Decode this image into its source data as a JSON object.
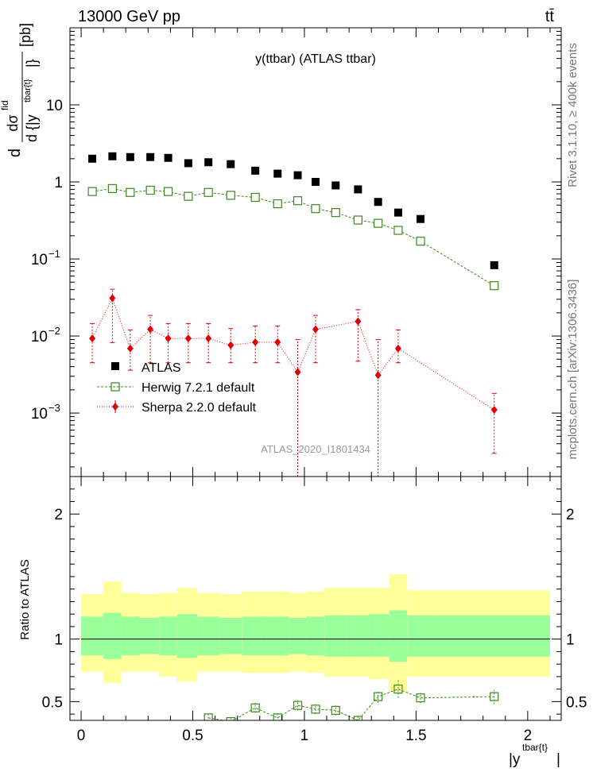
{
  "header": {
    "energy_label": "13000 GeV pp",
    "process_label": "tt̄"
  },
  "side_labels": {
    "rivet": "Rivet 3.1.10, ≥ 400k events",
    "source": "mcplots.cern.ch [arXiv:1306.3436]"
  },
  "chart_data": [
    {
      "type": "scatter",
      "panel": "main",
      "title": "y(ttbar) (ATLAS ttbar)",
      "watermark": "ATLAS_2020_I1801434",
      "ylabel": {
        "prefix": "d",
        "numerator": "dσ",
        "numerator_sup": "fid",
        "denominator": "d {|y",
        "denominator_sup": "tbar{t}",
        "denominator_close": "|}",
        "units": "[pb]"
      },
      "yscale": "log",
      "xlim": [
        -0.05,
        2.15
      ],
      "ylim": [
        0.00015,
        100
      ],
      "y_ticks": [
        {
          "value": 10,
          "label": "10"
        },
        {
          "value": 1,
          "label": "1"
        },
        {
          "value": 0.1,
          "label": "10",
          "exp": "−1"
        },
        {
          "value": 0.01,
          "label": "10",
          "exp": "−2"
        },
        {
          "value": 0.001,
          "label": "10",
          "exp": "−3"
        }
      ],
      "legend": [
        {
          "name": "ATLAS",
          "color": "#000000",
          "marker": "square-filled"
        },
        {
          "name": "Herwig 7.2.1 default",
          "color": "#3a8a1a",
          "marker": "square-open"
        },
        {
          "name": "Sherpa 2.2.0 default",
          "color": "#e00000",
          "marker": "diamond"
        }
      ],
      "series": [
        {
          "name": "ATLAS",
          "x": [
            0.05,
            0.14,
            0.22,
            0.31,
            0.39,
            0.48,
            0.57,
            0.67,
            0.78,
            0.88,
            0.97,
            1.05,
            1.14,
            1.24,
            1.33,
            1.42,
            1.52,
            1.85
          ],
          "values": [
            2.0,
            2.15,
            2.1,
            2.1,
            2.05,
            1.75,
            1.8,
            1.7,
            1.4,
            1.28,
            1.22,
            1.0,
            0.9,
            0.8,
            0.55,
            0.4,
            0.33,
            0.083
          ]
        },
        {
          "name": "Herwig 7.2.1 default",
          "x": [
            0.05,
            0.14,
            0.22,
            0.31,
            0.39,
            0.48,
            0.57,
            0.67,
            0.78,
            0.88,
            0.97,
            1.05,
            1.14,
            1.24,
            1.33,
            1.42,
            1.52,
            1.85
          ],
          "values": [
            0.75,
            0.82,
            0.73,
            0.78,
            0.75,
            0.65,
            0.73,
            0.67,
            0.63,
            0.52,
            0.57,
            0.45,
            0.4,
            0.32,
            0.29,
            0.235,
            0.17,
            0.045
          ]
        },
        {
          "name": "Sherpa 2.2.0 default",
          "x": [
            0.05,
            0.14,
            0.22,
            0.31,
            0.39,
            0.48,
            0.57,
            0.67,
            0.78,
            0.88,
            0.97,
            1.05,
            1.24,
            1.33,
            1.42,
            1.85
          ],
          "values": [
            0.0093,
            0.031,
            0.0069,
            0.0122,
            0.0093,
            0.0093,
            0.0093,
            0.0076,
            0.0083,
            0.0083,
            0.0034,
            0.0122,
            0.0155,
            0.0031,
            0.0069,
            0.0011
          ],
          "err_low": [
            0.0045,
            0.0082,
            0.0036,
            0.0045,
            0.0045,
            0.0045,
            0.0045,
            0.0045,
            0.0045,
            0.0045,
            0.00015,
            0.0045,
            0.0047,
            0.00015,
            0.0045,
            0.0003
          ],
          "err_high": [
            0.0145,
            0.0405,
            0.012,
            0.0185,
            0.0145,
            0.0145,
            0.0145,
            0.0125,
            0.0135,
            0.0135,
            0.009,
            0.0185,
            0.022,
            0.009,
            0.012,
            0.0018
          ]
        }
      ]
    },
    {
      "type": "scatter",
      "panel": "ratio",
      "ylabel": "Ratio to ATLAS",
      "xlabel": {
        "base": "|y",
        "sup": "tbar{t}",
        "close": "|"
      },
      "xlim": [
        -0.05,
        2.15
      ],
      "ylim": [
        0.35,
        2.3
      ],
      "x_ticks": [
        0,
        0.5,
        1,
        1.5,
        2
      ],
      "x_tick_labels": [
        "0",
        "0.5",
        "1",
        "1.5",
        "2"
      ],
      "y_ticks": [
        0.5,
        1,
        2
      ],
      "y_tick_labels": [
        "0.5",
        "1",
        "2"
      ],
      "bin_edges": [
        0.0,
        0.1,
        0.18,
        0.26,
        0.35,
        0.43,
        0.52,
        0.62,
        0.72,
        0.83,
        0.93,
        1.01,
        1.09,
        1.19,
        1.29,
        1.38,
        1.46,
        1.58,
        2.1
      ],
      "band_stat_low": [
        0.87,
        0.84,
        0.87,
        0.88,
        0.87,
        0.85,
        0.87,
        0.88,
        0.87,
        0.87,
        0.88,
        0.87,
        0.86,
        0.86,
        0.86,
        0.82,
        0.86,
        0.86
      ],
      "band_stat_high": [
        1.18,
        1.21,
        1.18,
        1.17,
        1.18,
        1.2,
        1.18,
        1.17,
        1.18,
        1.18,
        1.17,
        1.18,
        1.19,
        1.19,
        1.2,
        1.23,
        1.19,
        1.19
      ],
      "band_total_low": [
        0.74,
        0.65,
        0.74,
        0.74,
        0.7,
        0.66,
        0.74,
        0.74,
        0.73,
        0.73,
        0.74,
        0.73,
        0.7,
        0.7,
        0.68,
        0.58,
        0.7,
        0.7
      ],
      "band_total_high": [
        1.36,
        1.46,
        1.37,
        1.36,
        1.37,
        1.41,
        1.37,
        1.36,
        1.38,
        1.38,
        1.37,
        1.38,
        1.41,
        1.41,
        1.41,
        1.52,
        1.39,
        1.39
      ],
      "reference_line": 1,
      "series": [
        {
          "name": "Herwig 7.2.1 default",
          "x": [
            0.57,
            0.67,
            0.78,
            0.88,
            0.97,
            1.05,
            1.14,
            1.24,
            1.33,
            1.42,
            1.52,
            1.85
          ],
          "values": [
            0.37,
            0.34,
            0.45,
            0.37,
            0.47,
            0.44,
            0.43,
            0.35,
            0.54,
            0.6,
            0.53,
            0.54
          ],
          "err": [
            0.03,
            0.03,
            0.04,
            0.03,
            0.04,
            0.04,
            0.04,
            0.03,
            0.05,
            0.07,
            0.04,
            0.06
          ]
        }
      ],
      "colors": {
        "stat_band": "#99ff99",
        "total_band": "#ffff99",
        "herwig": "#3a8a1a"
      }
    }
  ]
}
